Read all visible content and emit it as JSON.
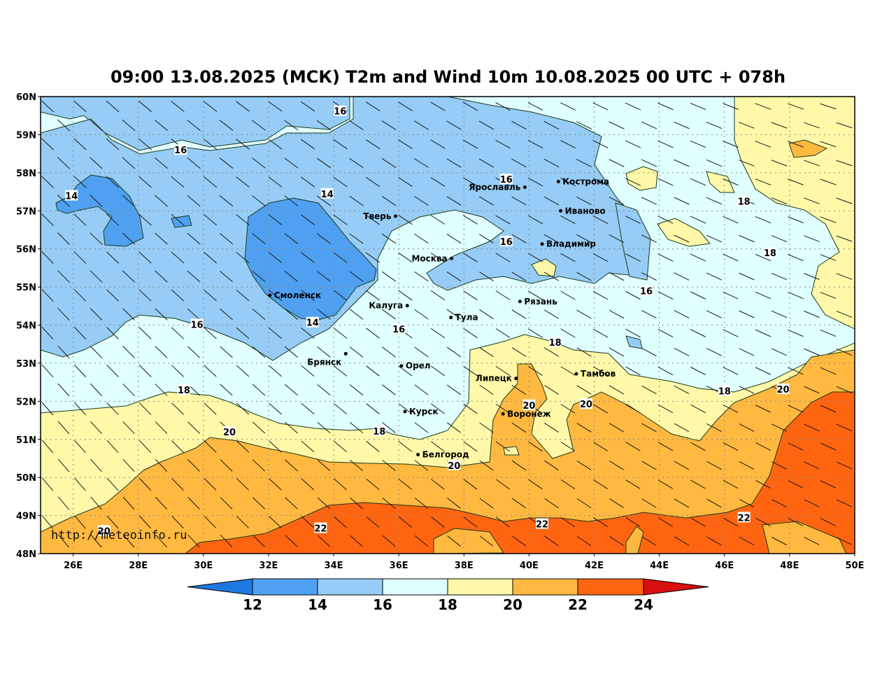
{
  "title": "09:00 13.08.2025 (МСК) T2m and Wind 10m 10.08.2025 00 UTC + 078h",
  "credit": "http://meteoinfo.ru",
  "lat_labels": [
    "60N",
    "59N",
    "58N",
    "57N",
    "56N",
    "55N",
    "54N",
    "53N",
    "52N",
    "51N",
    "50N",
    "49N",
    "48N"
  ],
  "lon_labels": [
    "26E",
    "28E",
    "30E",
    "32E",
    "34E",
    "36E",
    "38E",
    "40E",
    "42E",
    "44E",
    "46E",
    "48E",
    "50E"
  ],
  "colorbar": {
    "ticks": [
      "12",
      "14",
      "16",
      "18",
      "20",
      "22",
      "24"
    ],
    "colors": [
      "#1f78e0",
      "#4fa0f0",
      "#96ccf5",
      "#e0ffff",
      "#fff8a8",
      "#ffb840",
      "#ff6410",
      "#d81010"
    ]
  },
  "cities": [
    {
      "name": "Кострома",
      "lon": 40.9,
      "lat": 57.77
    },
    {
      "name": "Ярославль",
      "lon": 39.87,
      "lat": 57.62
    },
    {
      "name": "Иваново",
      "lon": 40.97,
      "lat": 57.0
    },
    {
      "name": "Тверь",
      "lon": 35.9,
      "lat": 56.86
    },
    {
      "name": "Владимир",
      "lon": 40.4,
      "lat": 56.13
    },
    {
      "name": "Москва",
      "lon": 37.62,
      "lat": 55.75
    },
    {
      "name": "Смоленск",
      "lon": 32.04,
      "lat": 54.78
    },
    {
      "name": "Калуга",
      "lon": 36.26,
      "lat": 54.51
    },
    {
      "name": "Рязань",
      "lon": 39.72,
      "lat": 54.62
    },
    {
      "name": "Тула",
      "lon": 37.6,
      "lat": 54.2
    },
    {
      "name": "Брянск",
      "lon": 34.37,
      "lat": 53.25
    },
    {
      "name": "Орел",
      "lon": 36.08,
      "lat": 52.93
    },
    {
      "name": "Липецк",
      "lon": 39.6,
      "lat": 52.6
    },
    {
      "name": "Тамбов",
      "lon": 41.45,
      "lat": 52.72
    },
    {
      "name": "Курск",
      "lon": 36.19,
      "lat": 51.73
    },
    {
      "name": "Воронеж",
      "lon": 39.2,
      "lat": 51.67
    },
    {
      "name": "Белгород",
      "lon": 36.59,
      "lat": 50.6
    }
  ],
  "isotherm_labels": [
    {
      "text": "16",
      "lon": 34.2,
      "lat": 59.62
    },
    {
      "text": "16",
      "lon": 29.3,
      "lat": 58.6
    },
    {
      "text": "14",
      "lon": 25.95,
      "lat": 57.4
    },
    {
      "text": "14",
      "lon": 33.8,
      "lat": 57.45
    },
    {
      "text": "16",
      "lon": 39.3,
      "lat": 57.83
    },
    {
      "text": "18",
      "lon": 46.6,
      "lat": 57.25
    },
    {
      "text": "16",
      "lon": 39.3,
      "lat": 56.2
    },
    {
      "text": "18",
      "lon": 47.4,
      "lat": 55.9
    },
    {
      "text": "16",
      "lon": 43.6,
      "lat": 54.9
    },
    {
      "text": "16",
      "lon": 29.8,
      "lat": 54.02
    },
    {
      "text": "14",
      "lon": 33.35,
      "lat": 54.07
    },
    {
      "text": "16",
      "lon": 36.0,
      "lat": 53.9
    },
    {
      "text": "18",
      "lon": 40.8,
      "lat": 53.55
    },
    {
      "text": "18",
      "lon": 29.4,
      "lat": 52.3
    },
    {
      "text": "18",
      "lon": 46.0,
      "lat": 52.27
    },
    {
      "text": "20",
      "lon": 47.8,
      "lat": 52.32
    },
    {
      "text": "20",
      "lon": 40.0,
      "lat": 51.9
    },
    {
      "text": "20",
      "lon": 41.75,
      "lat": 51.93
    },
    {
      "text": "20",
      "lon": 30.8,
      "lat": 51.2
    },
    {
      "text": "18",
      "lon": 35.4,
      "lat": 51.22
    },
    {
      "text": "20",
      "lon": 37.7,
      "lat": 50.32
    },
    {
      "text": "22",
      "lon": 33.6,
      "lat": 48.67
    },
    {
      "text": "22",
      "lon": 40.4,
      "lat": 48.78
    },
    {
      "text": "22",
      "lon": 46.6,
      "lat": 48.95
    },
    {
      "text": "20",
      "lon": 26.95,
      "lat": 48.6
    }
  ]
}
